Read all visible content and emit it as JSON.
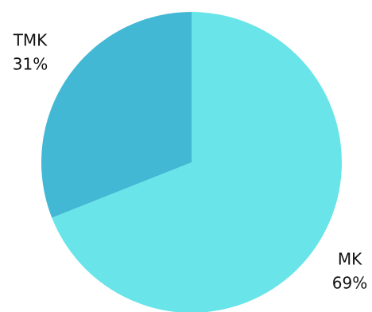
{
  "chart_data": {
    "type": "pie",
    "categories": [
      "MK",
      "TMK"
    ],
    "values": [
      69,
      31
    ],
    "value_labels": [
      "69%",
      "31%"
    ],
    "colors": [
      "#69e4e8",
      "#43b8d4"
    ]
  }
}
